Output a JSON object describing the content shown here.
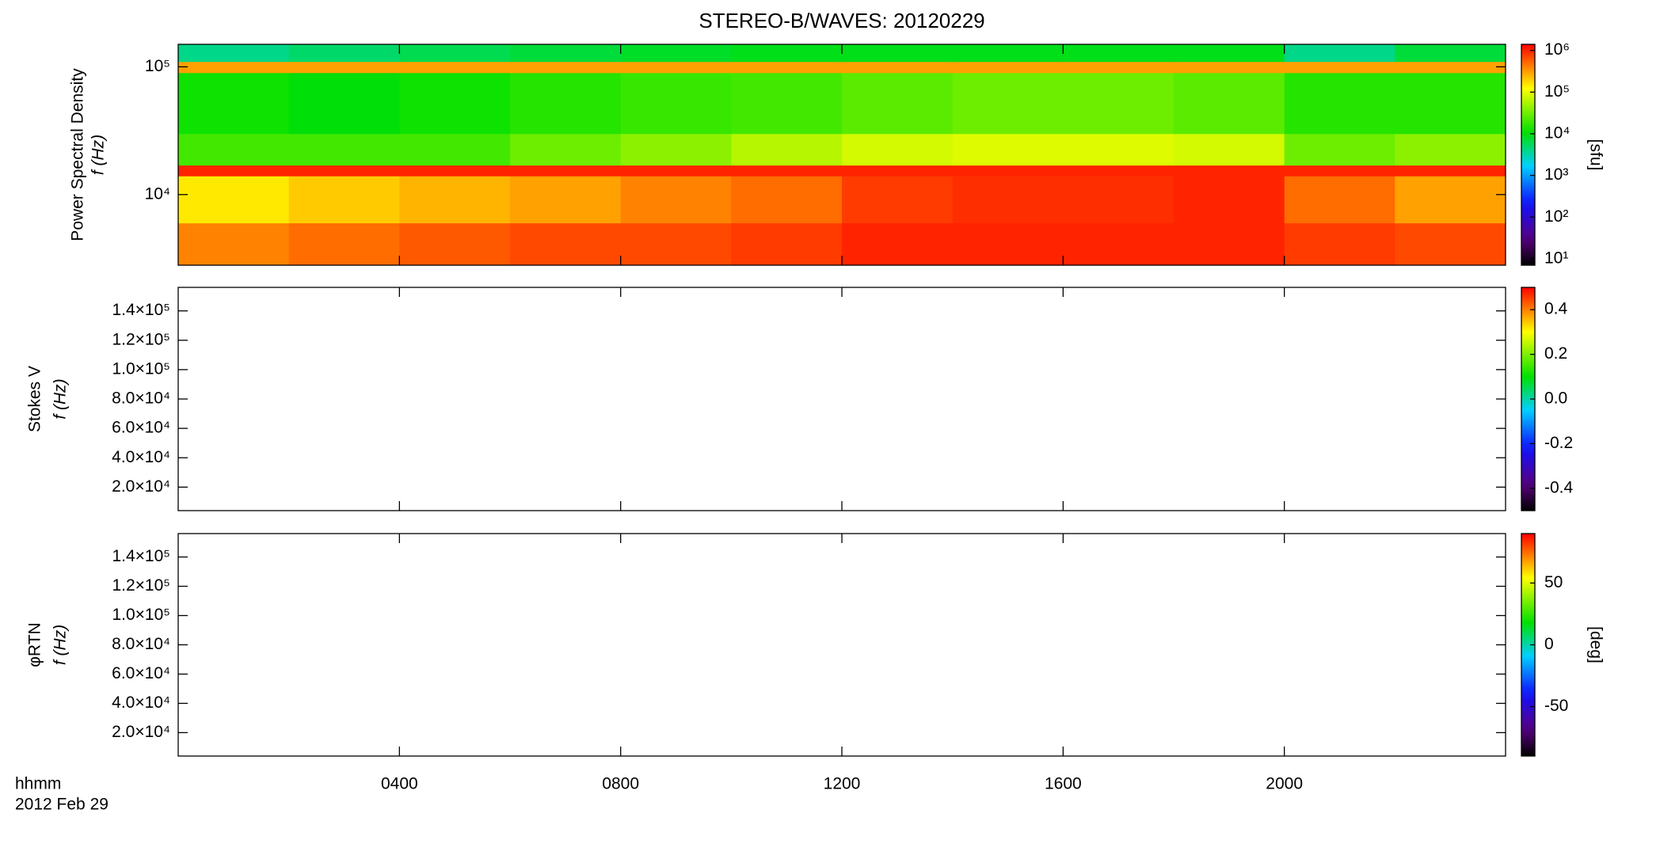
{
  "chart_data": [
    {
      "type": "heatmap",
      "title": "STEREO-B/WAVES: 20120229",
      "ylabel": [
        "Power Spectral Density",
        "f (Hz)"
      ],
      "log_y": true,
      "ylim": [
        2800,
        150000
      ],
      "yticks": [
        {
          "value": 10000,
          "label": "10⁴"
        },
        {
          "value": 100000,
          "label": "10⁵"
        }
      ],
      "xlim": [
        0,
        24
      ],
      "x_edges": [
        0,
        2,
        4,
        6,
        8,
        10,
        12,
        14,
        16,
        18,
        20,
        22,
        24
      ],
      "y_edges": [
        2800,
        6000,
        14000,
        17000,
        30000,
        90000,
        110000,
        150000
      ],
      "z": [
        [
          400000,
          500000,
          600000,
          700000,
          700000,
          800000,
          1000000,
          1000000,
          1000000,
          1000000,
          800000,
          700000
        ],
        [
          150000,
          200000,
          250000,
          300000,
          400000,
          500000,
          800000,
          900000,
          900000,
          1000000,
          500000,
          300000
        ],
        [
          1000000,
          1000000,
          1000000,
          1000000,
          1000000,
          1000000,
          1000000,
          1000000,
          1000000,
          1000000,
          1000000,
          1000000
        ],
        [
          20000,
          20000,
          20000,
          30000,
          40000,
          60000,
          80000,
          90000,
          90000,
          80000,
          30000,
          40000
        ],
        [
          12000,
          10000,
          12000,
          15000,
          18000,
          20000,
          25000,
          30000,
          30000,
          25000,
          15000,
          15000
        ],
        [
          300000,
          300000,
          300000,
          300000,
          300000,
          300000,
          300000,
          300000,
          300000,
          300000,
          300000,
          300000
        ],
        [
          4000,
          5000,
          6000,
          7000,
          8000,
          9000,
          9000,
          9000,
          9000,
          9000,
          4000,
          7000
        ]
      ],
      "colorbar": {
        "log": true,
        "lim": [
          7,
          1400000
        ],
        "label": "[sfu]",
        "ticks": [
          {
            "value": 10,
            "label": "10¹"
          },
          {
            "value": 100,
            "label": "10²"
          },
          {
            "value": 1000,
            "label": "10³"
          },
          {
            "value": 10000,
            "label": "10⁴"
          },
          {
            "value": 100000,
            "label": "10⁵"
          },
          {
            "value": 1000000,
            "label": "10⁶"
          }
        ]
      }
    },
    {
      "type": "heatmap",
      "ylabel": [
        "Stokes V",
        "f (Hz)"
      ],
      "ylim": [
        4000,
        156000
      ],
      "xlim": [
        0,
        24
      ],
      "yticks": [
        {
          "value": 20000,
          "label": "2.0×10⁴"
        },
        {
          "value": 40000,
          "label": "4.0×10⁴"
        },
        {
          "value": 60000,
          "label": "6.0×10⁴"
        },
        {
          "value": 80000,
          "label": "8.0×10⁴"
        },
        {
          "value": 100000,
          "label": "1.0×10⁵"
        },
        {
          "value": 120000,
          "label": "1.2×10⁵"
        },
        {
          "value": 140000,
          "label": "1.4×10⁵"
        }
      ],
      "colorbar": {
        "lim": [
          -0.5,
          0.5
        ],
        "ticks": [
          -0.4,
          -0.2,
          {
            "value": 0,
            "label": "0.0"
          },
          0.2,
          0.4
        ]
      }
    },
    {
      "type": "heatmap",
      "ylabel": [
        "φRTN",
        "f (Hz)"
      ],
      "ylim": [
        4000,
        156000
      ],
      "xlim": [
        0,
        24
      ],
      "yticks": [
        {
          "value": 20000,
          "label": "2.0×10⁴"
        },
        {
          "value": 40000,
          "label": "4.0×10⁴"
        },
        {
          "value": 60000,
          "label": "6.0×10⁴"
        },
        {
          "value": 80000,
          "label": "8.0×10⁴"
        },
        {
          "value": 100000,
          "label": "1.0×10⁵"
        },
        {
          "value": 120000,
          "label": "1.2×10⁵"
        },
        {
          "value": 140000,
          "label": "1.4×10⁵"
        }
      ],
      "xticks": [
        {
          "value": 4,
          "label": "0400"
        },
        {
          "value": 8,
          "label": "0800"
        },
        {
          "value": 12,
          "label": "1200"
        },
        {
          "value": 16,
          "label": "1600"
        },
        {
          "value": 20,
          "label": "2000"
        }
      ],
      "xlabel": [
        "hhmm",
        "2012 Feb 29"
      ],
      "colorbar": {
        "lim": [
          -90,
          90
        ],
        "label": "[deg]",
        "ticks": [
          -50,
          0,
          50
        ]
      }
    }
  ]
}
